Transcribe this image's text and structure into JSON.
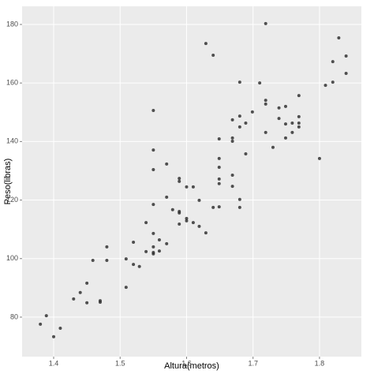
{
  "chart_data": {
    "type": "scatter",
    "x_label": "Altura(metros)",
    "y_label": "Peso(libras)",
    "color": "#333333",
    "grid": true,
    "xlim": [
      1.3525,
      1.863
    ],
    "ylim": [
      66.5,
      186.2
    ],
    "xticks": [
      1.4,
      1.5,
      1.6,
      1.7,
      1.8
    ],
    "yticks": [
      80,
      100,
      120,
      140,
      160,
      180
    ],
    "x": [
      1.38,
      1.389,
      1.4,
      1.41,
      1.43,
      1.44,
      1.45,
      1.45,
      1.459,
      1.47,
      1.47,
      1.48,
      1.48,
      1.509,
      1.509,
      1.52,
      1.52,
      1.529,
      1.539,
      1.539,
      1.55,
      1.55,
      1.55,
      1.55,
      1.55,
      1.55,
      1.55,
      1.55,
      1.559,
      1.559,
      1.57,
      1.57,
      1.57,
      1.579,
      1.589,
      1.589,
      1.589,
      1.589,
      1.589,
      1.6,
      1.6,
      1.6,
      1.61,
      1.61,
      1.619,
      1.619,
      1.629,
      1.629,
      1.64,
      1.64,
      1.649,
      1.649,
      1.649,
      1.649,
      1.649,
      1.649,
      1.669,
      1.669,
      1.669,
      1.669,
      1.669,
      1.68,
      1.68,
      1.68,
      1.68,
      1.68,
      1.689,
      1.689,
      1.699,
      1.71,
      1.719,
      1.719,
      1.719,
      1.719,
      1.73,
      1.739,
      1.739,
      1.749,
      1.749,
      1.749,
      1.759,
      1.759,
      1.769,
      1.769,
      1.769,
      1.769,
      1.8,
      1.809,
      1.82,
      1.82,
      1.829,
      1.84,
      1.84
    ],
    "y": [
      77.6,
      80.5,
      73.3,
      76.2,
      86.2,
      88.4,
      91.6,
      84.9,
      99.4,
      85.1,
      85.6,
      104.0,
      99.4,
      90.2,
      99.9,
      98.0,
      105.6,
      97.3,
      112.3,
      102.4,
      108.6,
      102.1,
      101.6,
      104.0,
      150.6,
      137.1,
      130.4,
      118.5,
      106.4,
      102.6,
      121.0,
      105.1,
      132.3,
      116.7,
      116.1,
      115.6,
      127.4,
      126.4,
      111.8,
      113.7,
      112.9,
      124.5,
      124.5,
      112.3,
      119.9,
      111.0,
      108.8,
      173.5,
      169.5,
      117.5,
      140.9,
      134.2,
      131.2,
      127.2,
      125.6,
      117.7,
      147.4,
      141.2,
      140.1,
      128.5,
      124.7,
      160.3,
      148.7,
      145.0,
      120.2,
      117.5,
      146.3,
      135.8,
      150.1,
      160.0,
      180.3,
      154.1,
      152.8,
      143.1,
      138.0,
      151.5,
      147.9,
      152.0,
      146.0,
      141.2,
      146.3,
      143.1,
      155.7,
      148.5,
      146.3,
      145.0,
      134.2,
      159.2,
      167.3,
      160.3,
      175.4,
      169.2,
      163.3
    ]
  }
}
